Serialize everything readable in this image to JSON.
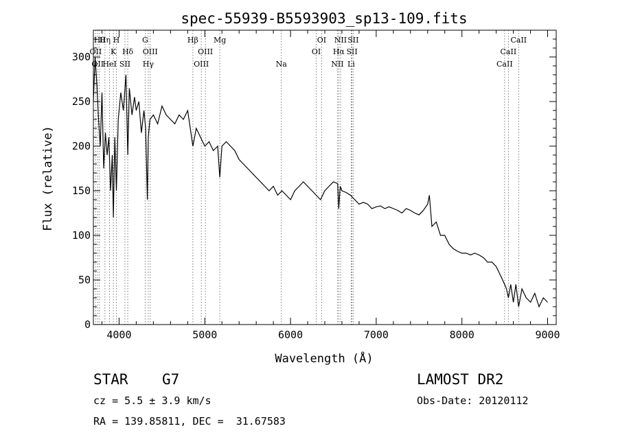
{
  "chart_data": {
    "type": "line",
    "title": "spec-55939-B5593903_sp13-109.fits",
    "xlabel": "Wavelength (Å)",
    "ylabel": "Flux (relative)",
    "xlim": [
      3700,
      9100
    ],
    "ylim": [
      0,
      330
    ],
    "x_ticks": [
      4000,
      5000,
      6000,
      7000,
      8000,
      9000
    ],
    "y_ticks": [
      0,
      50,
      100,
      150,
      200,
      250,
      300
    ],
    "grid": false,
    "series": [
      {
        "color": "#000000",
        "x": [
          3700,
          3720,
          3740,
          3760,
          3780,
          3800,
          3820,
          3840,
          3860,
          3880,
          3900,
          3920,
          3933,
          3950,
          3968,
          3990,
          4020,
          4050,
          4080,
          4101,
          4120,
          4150,
          4180,
          4200,
          4230,
          4260,
          4290,
          4310,
          4330,
          4340,
          4360,
          4400,
          4450,
          4500,
          4550,
          4600,
          4650,
          4700,
          4750,
          4800,
          4861,
          4900,
          4950,
          5000,
          5050,
          5100,
          5150,
          5175,
          5200,
          5250,
          5300,
          5350,
          5400,
          5450,
          5500,
          5550,
          5600,
          5650,
          5700,
          5750,
          5800,
          5850,
          5900,
          5950,
          6000,
          6050,
          6100,
          6150,
          6200,
          6250,
          6300,
          6350,
          6400,
          6450,
          6500,
          6550,
          6563,
          6580,
          6600,
          6650,
          6700,
          6750,
          6800,
          6850,
          6900,
          6950,
          7000,
          7050,
          7100,
          7150,
          7200,
          7250,
          7300,
          7350,
          7400,
          7450,
          7500,
          7550,
          7600,
          7620,
          7650,
          7700,
          7750,
          7800,
          7850,
          7900,
          7950,
          8000,
          8050,
          8100,
          8150,
          8200,
          8250,
          8300,
          8350,
          8400,
          8450,
          8498,
          8520,
          8542,
          8570,
          8600,
          8630,
          8662,
          8700,
          8750,
          8800,
          8850,
          8900,
          8950,
          9000
        ],
        "y": [
          250,
          300,
          270,
          230,
          200,
          260,
          175,
          215,
          190,
          210,
          150,
          190,
          120,
          210,
          150,
          230,
          260,
          240,
          280,
          190,
          265,
          235,
          255,
          240,
          250,
          215,
          240,
          220,
          140,
          210,
          230,
          235,
          225,
          245,
          235,
          230,
          225,
          235,
          230,
          240,
          200,
          220,
          210,
          200,
          205,
          195,
          200,
          165,
          200,
          205,
          200,
          195,
          185,
          180,
          175,
          170,
          165,
          160,
          155,
          150,
          155,
          145,
          150,
          145,
          140,
          150,
          155,
          160,
          155,
          150,
          145,
          140,
          150,
          155,
          160,
          158,
          130,
          155,
          150,
          148,
          145,
          140,
          135,
          137,
          135,
          130,
          132,
          133,
          130,
          132,
          130,
          128,
          125,
          130,
          128,
          125,
          123,
          128,
          135,
          145,
          110,
          115,
          100,
          100,
          90,
          85,
          82,
          80,
          80,
          78,
          80,
          78,
          75,
          70,
          70,
          65,
          55,
          45,
          40,
          30,
          45,
          25,
          45,
          20,
          40,
          30,
          25,
          35,
          20,
          30,
          25
        ]
      }
    ],
    "line_markers": [
      {
        "wl": 3727,
        "label": "OII",
        "row": 2
      },
      {
        "wl": 3750,
        "label": "OII",
        "row": 3
      },
      {
        "wl": 3771,
        "label": "Hθ",
        "row": 1
      },
      {
        "wl": 3835,
        "label": "Hη",
        "row": 1
      },
      {
        "wl": 3889,
        "label": "HeI",
        "row": 3
      },
      {
        "wl": 3933,
        "label": "K",
        "row": 2
      },
      {
        "wl": 3968,
        "label": "H",
        "row": 1
      },
      {
        "wl": 4068,
        "label": "SII",
        "row": 3
      },
      {
        "wl": 4101,
        "label": "Hδ",
        "row": 2
      },
      {
        "wl": 4304,
        "label": "G",
        "row": 1
      },
      {
        "wl": 4340,
        "label": "Hγ",
        "row": 3
      },
      {
        "wl": 4363,
        "label": "OIII",
        "row": 2
      },
      {
        "wl": 4861,
        "label": "Hβ",
        "row": 1
      },
      {
        "wl": 4959,
        "label": "OIII",
        "row": 3
      },
      {
        "wl": 5007,
        "label": "OIII",
        "row": 2
      },
      {
        "wl": 5175,
        "label": "Mg",
        "row": 1
      },
      {
        "wl": 5893,
        "label": "Na",
        "row": 3
      },
      {
        "wl": 6300,
        "label": "OI",
        "row": 2
      },
      {
        "wl": 6363,
        "label": "OI",
        "row": 1
      },
      {
        "wl": 6548,
        "label": "NII",
        "row": 3
      },
      {
        "wl": 6563,
        "label": "Hα",
        "row": 2
      },
      {
        "wl": 6584,
        "label": "NII",
        "row": 1
      },
      {
        "wl": 6708,
        "label": "Li",
        "row": 3
      },
      {
        "wl": 6717,
        "label": "SII",
        "row": 2
      },
      {
        "wl": 6731,
        "label": "SII",
        "row": 1
      },
      {
        "wl": 8498,
        "label": "CaII",
        "row": 3
      },
      {
        "wl": 8542,
        "label": "CaII",
        "row": 2
      },
      {
        "wl": 8662,
        "label": "CaII",
        "row": 1
      }
    ]
  },
  "info": {
    "object_class": "STAR",
    "subclass": "G7",
    "survey": "LAMOST DR2",
    "cz": "cz = 5.5 ± 3.9 km/s",
    "obs_date": "Obs-Date: 20120112",
    "coords": "RA = 139.85811, DEC =  31.67583"
  }
}
